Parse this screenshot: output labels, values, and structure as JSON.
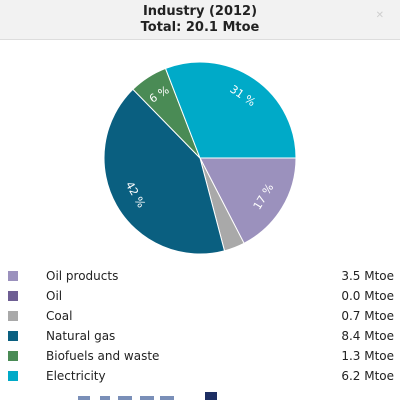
{
  "chart_data": {
    "type": "pie",
    "title": "Industry (2012)",
    "subtitle": "Total: 20.1 Mtoe",
    "unit": "Mtoe",
    "slices": [
      {
        "name": "Oil products",
        "value": 3.5,
        "value_label": "3.5 Mtoe",
        "percent_label": "17 %",
        "color": "#9b91bd"
      },
      {
        "name": "Oil",
        "value": 0.0,
        "value_label": "0.0 Mtoe",
        "percent_label": "",
        "color": "#6e5e93"
      },
      {
        "name": "Coal",
        "value": 0.7,
        "value_label": "0.7 Mtoe",
        "percent_label": "",
        "color": "#a9a9a9"
      },
      {
        "name": "Natural gas",
        "value": 8.4,
        "value_label": "8.4 Mtoe",
        "percent_label": "42 %",
        "color": "#0a5f80"
      },
      {
        "name": "Biofuels and waste",
        "value": 1.3,
        "value_label": "1.3 Mtoe",
        "percent_label": "6 %",
        "color": "#4a8b55"
      },
      {
        "name": "Electricity",
        "value": 6.2,
        "value_label": "6.2 Mtoe",
        "percent_label": "31 %",
        "color": "#00aac8"
      }
    ]
  },
  "icons": {
    "close": "close-icon"
  }
}
